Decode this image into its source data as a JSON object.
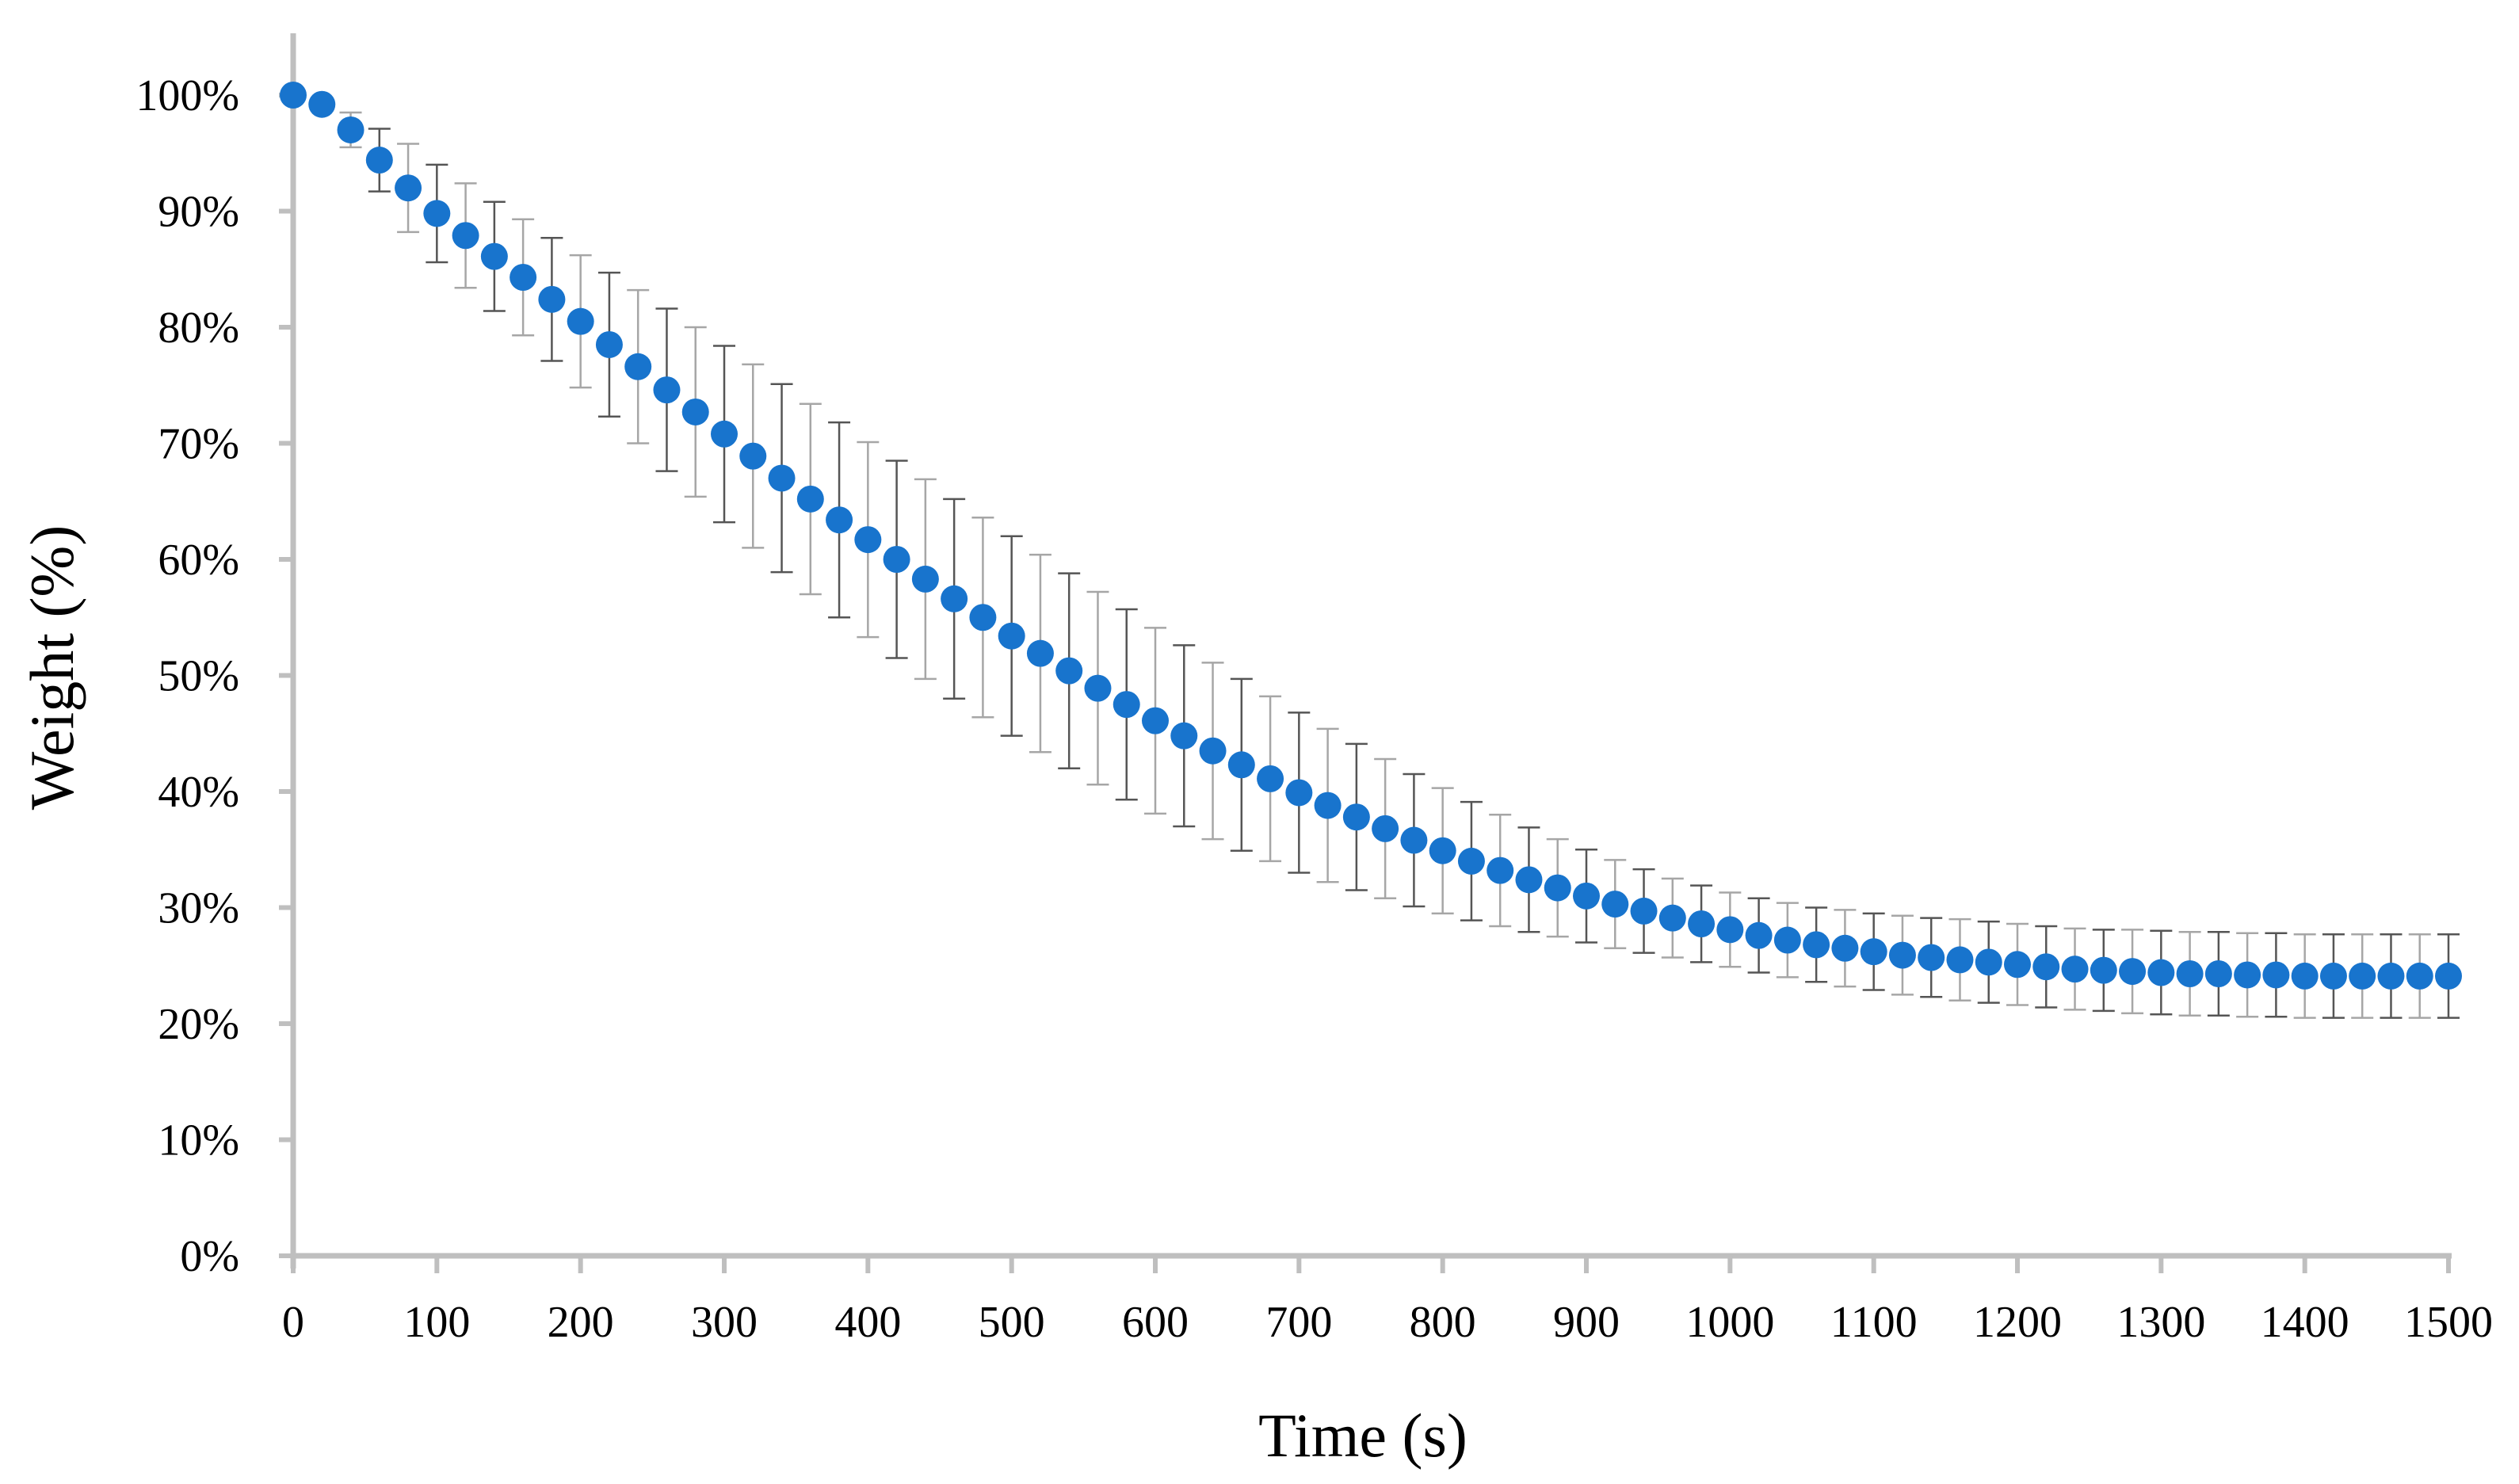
{
  "chart_data": {
    "type": "scatter",
    "title": "",
    "xlabel": "Time (s)",
    "ylabel": "Weight (%)",
    "xlim": [
      0,
      1500
    ],
    "ylim": [
      0,
      100
    ],
    "x_ticks": [
      "0",
      "100",
      "200",
      "300",
      "400",
      "500",
      "600",
      "700",
      "800",
      "900",
      "1000",
      "1100",
      "1200",
      "1300",
      "1400",
      "1500"
    ],
    "y_ticks": [
      "0%",
      "10%",
      "20%",
      "30%",
      "40%",
      "50%",
      "60%",
      "70%",
      "80%",
      "90%",
      "100%"
    ],
    "grid": false,
    "legend": "none",
    "marker_color": "#1874CD",
    "error_bar_color": "#7f7f7f",
    "axis_color": "#BFBFBF",
    "series": [
      {
        "name": "Weight",
        "x": [
          0,
          20,
          40,
          60,
          80,
          100,
          120,
          140,
          160,
          180,
          200,
          220,
          240,
          260,
          280,
          300,
          320,
          340,
          360,
          380,
          400,
          420,
          440,
          460,
          480,
          500,
          520,
          540,
          560,
          580,
          600,
          620,
          640,
          660,
          680,
          700,
          720,
          740,
          760,
          780,
          800,
          820,
          840,
          860,
          880,
          900,
          920,
          940,
          960,
          980,
          1000,
          1020,
          1040,
          1060,
          1080,
          1100,
          1120,
          1140,
          1160,
          1180,
          1200,
          1220,
          1240,
          1260,
          1280,
          1300,
          1320,
          1340,
          1360,
          1380,
          1400,
          1420,
          1440,
          1460,
          1480,
          1500
        ],
        "y": [
          100,
          99.2,
          97.0,
          94.4,
          92.0,
          89.8,
          87.9,
          86.1,
          84.3,
          82.4,
          80.5,
          78.5,
          76.6,
          74.6,
          72.7,
          70.8,
          68.9,
          67.0,
          65.2,
          63.4,
          61.7,
          60.0,
          58.3,
          56.6,
          55.0,
          53.4,
          51.9,
          50.4,
          48.9,
          47.5,
          46.1,
          44.8,
          43.5,
          42.3,
          41.1,
          39.9,
          38.8,
          37.8,
          36.8,
          35.8,
          34.9,
          34.0,
          33.2,
          32.4,
          31.7,
          31.0,
          30.3,
          29.7,
          29.1,
          28.6,
          28.1,
          27.6,
          27.2,
          26.8,
          26.5,
          26.2,
          25.9,
          25.7,
          25.5,
          25.3,
          25.1,
          24.9,
          24.7,
          24.6,
          24.5,
          24.4,
          24.3,
          24.3,
          24.2,
          24.2,
          24.1,
          24.1,
          24.1,
          24.1,
          24.1,
          24.1
        ],
        "error": [
          0,
          0.5,
          1.5,
          2.7,
          3.8,
          4.2,
          4.5,
          4.7,
          5.0,
          5.3,
          5.7,
          6.2,
          6.6,
          7.0,
          7.3,
          7.6,
          7.9,
          8.1,
          8.2,
          8.4,
          8.4,
          8.5,
          8.6,
          8.6,
          8.6,
          8.6,
          8.5,
          8.4,
          8.3,
          8.2,
          8.0,
          7.8,
          7.6,
          7.4,
          7.1,
          6.9,
          6.6,
          6.3,
          6.0,
          5.7,
          5.4,
          5.1,
          4.8,
          4.5,
          4.2,
          4.0,
          3.8,
          3.6,
          3.4,
          3.3,
          3.2,
          3.2,
          3.2,
          3.2,
          3.3,
          3.3,
          3.4,
          3.4,
          3.5,
          3.5,
          3.5,
          3.5,
          3.5,
          3.5,
          3.6,
          3.6,
          3.6,
          3.6,
          3.6,
          3.6,
          3.6,
          3.6,
          3.6,
          3.6,
          3.6,
          3.6
        ]
      }
    ]
  }
}
